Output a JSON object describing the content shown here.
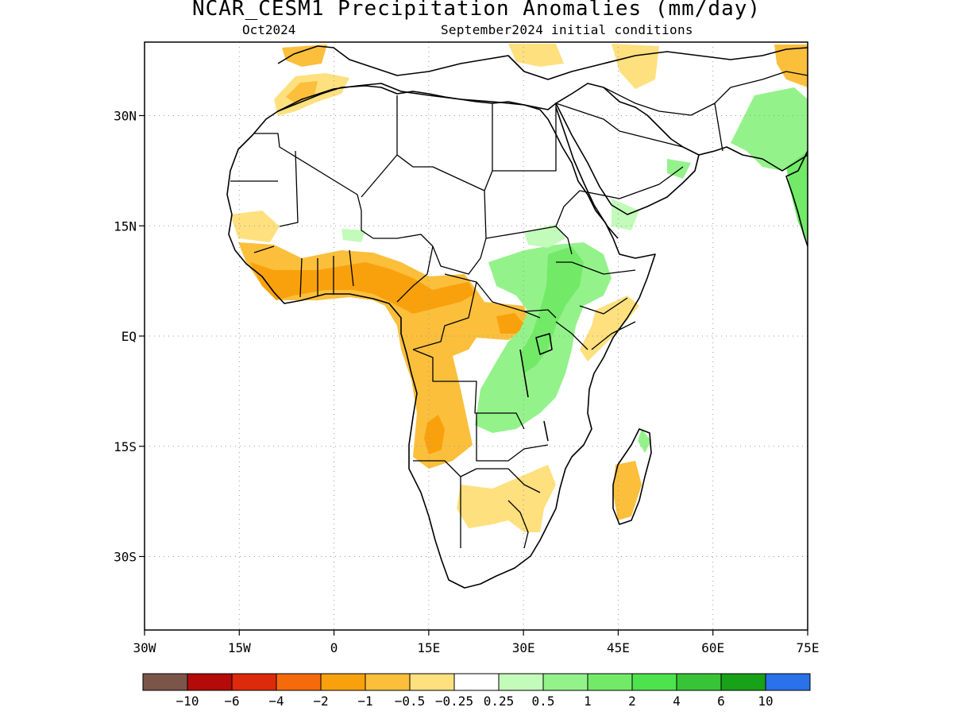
{
  "header": {
    "title": "NCAR_CESM1 Precipitation Anomalies (mm/day)",
    "subtitle_left": "Oct2024",
    "subtitle_right": "September2024 initial conditions"
  },
  "map": {
    "region": "Africa",
    "lon_range": [
      -30,
      75
    ],
    "lat_range": [
      -40,
      40
    ],
    "grid": "dotted",
    "lon_ticks": [
      {
        "value": -30,
        "label": "30W"
      },
      {
        "value": -15,
        "label": "15W"
      },
      {
        "value": 0,
        "label": "0"
      },
      {
        "value": 15,
        "label": "15E"
      },
      {
        "value": 30,
        "label": "30E"
      },
      {
        "value": 45,
        "label": "45E"
      },
      {
        "value": 60,
        "label": "60E"
      },
      {
        "value": 75,
        "label": "75E"
      }
    ],
    "lat_ticks": [
      {
        "value": 30,
        "label": "30N"
      },
      {
        "value": 15,
        "label": "15N"
      },
      {
        "value": 0,
        "label": "EQ"
      },
      {
        "value": -15,
        "label": "15S"
      },
      {
        "value": -30,
        "label": "30S"
      }
    ]
  },
  "legend": {
    "colors": [
      "#7a5548",
      "#b40a0a",
      "#dc2a0a",
      "#f56a0a",
      "#f9a10c",
      "#fbbf3c",
      "#fee07f",
      "#ffffff",
      "#c3fbba",
      "#94f28b",
      "#72ea68",
      "#4ee24c",
      "#37c537",
      "#17a217",
      "#2a71ea"
    ],
    "labels": [
      "−10",
      "−6",
      "−4",
      "−2",
      "−1",
      "−0.5",
      "−0.25",
      "0.25",
      "0.5",
      "1",
      "2",
      "4",
      "6",
      "10"
    ]
  }
}
